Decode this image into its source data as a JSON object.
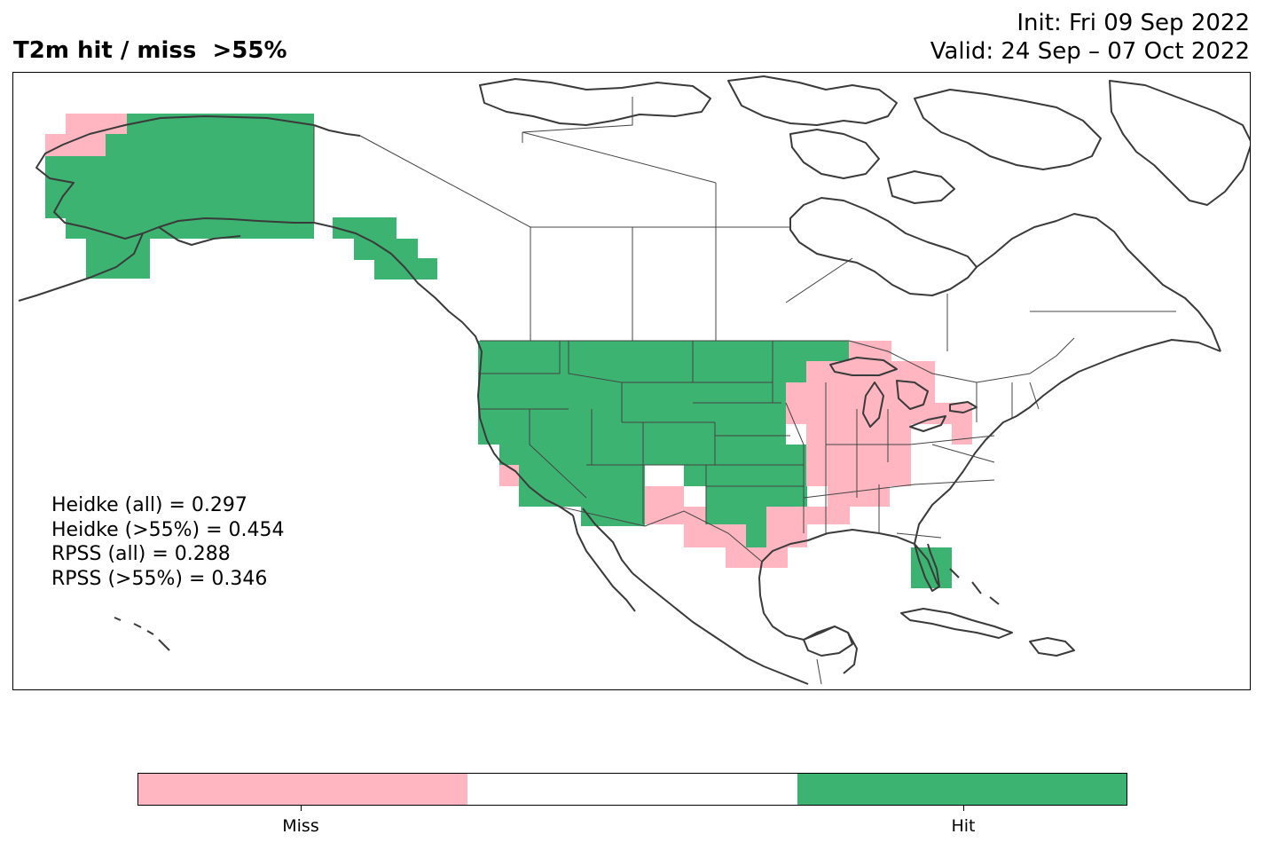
{
  "title_left": "T2m hit / miss  >55%",
  "title_right": {
    "init": "Init: Fri 09 Sep 2022",
    "valid": "Valid: 24 Sep – 07 Oct 2022"
  },
  "stats": [
    "Heidke (all) = 0.297",
    "Heidke (>55%) = 0.454",
    "RPSS (all) = 0.288",
    "RPSS (>55%) = 0.346"
  ],
  "legend": {
    "miss_label": "Miss",
    "hit_label": "Hit",
    "colors": {
      "miss": "#ffb6c1",
      "neutral": "#ffffff",
      "hit": "#3cb371"
    }
  },
  "map": {
    "outcome_colors": {
      "miss": "#ffb6c1",
      "hit": "#3cb371",
      "coast": "#3a3a3a",
      "border": "#444444"
    }
  }
}
